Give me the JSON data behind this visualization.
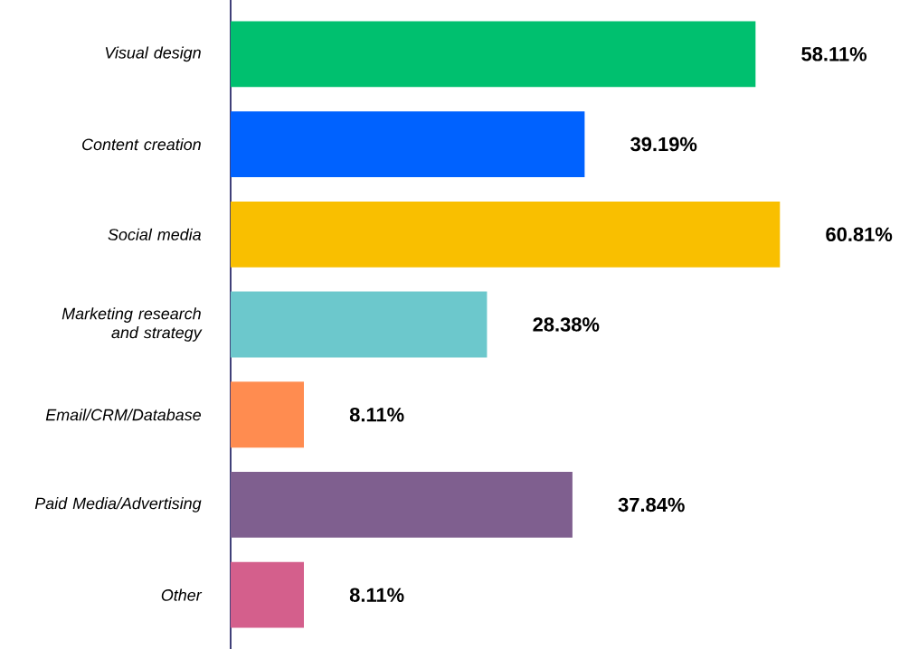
{
  "chart_data": {
    "type": "bar",
    "orientation": "horizontal",
    "categories": [
      "Visual design",
      "Content creation",
      "Social media",
      "Marketing research and strategy",
      "Email/CRM/Database",
      "Paid Media/Advertising",
      "Other"
    ],
    "values": [
      58.11,
      39.19,
      60.81,
      28.38,
      8.11,
      37.84,
      8.11
    ],
    "colors": [
      "#00c06f",
      "#0062ff",
      "#f9bf00",
      "#6cc8cc",
      "#ff8c50",
      "#7f5f8f",
      "#d45f8c"
    ],
    "value_labels": [
      "58.11%",
      "39.19%",
      "60.81%",
      "28.38%",
      "8.11%",
      "37.84%",
      "8.11%"
    ]
  }
}
